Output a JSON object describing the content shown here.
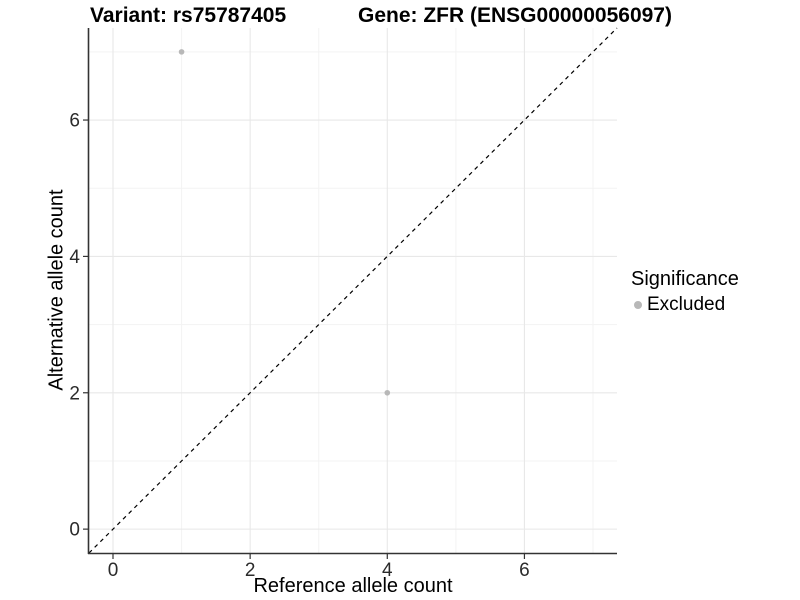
{
  "chart_data": {
    "type": "scatter",
    "title_left": "Variant: rs75787405",
    "title_right": "Gene: ZFR (ENSG00000056097)",
    "xlabel": "Reference allele count",
    "ylabel": "Alternative allele count",
    "xlim": [
      -0.35,
      7.35
    ],
    "ylim": [
      -0.35,
      7.35
    ],
    "x_ticks": [
      0,
      2,
      4,
      6
    ],
    "y_ticks": [
      0,
      2,
      4,
      6
    ],
    "x_minor_ticks": [
      1,
      3,
      5,
      7
    ],
    "y_minor_ticks": [
      1,
      3,
      5,
      7
    ],
    "grid": "on",
    "identity_line": {
      "style": "dashed",
      "from": [
        -0.35,
        -0.35
      ],
      "to": [
        7.35,
        7.35
      ],
      "color": "#000000"
    },
    "series": [
      {
        "name": "Excluded",
        "color": "#b8b8b8",
        "points": [
          [
            1,
            7
          ],
          [
            4,
            2
          ]
        ]
      }
    ],
    "legend": {
      "title": "Significance",
      "position": "right",
      "entries": [
        {
          "label": "Excluded",
          "color": "#b8b8b8"
        }
      ]
    }
  },
  "colors": {
    "background": "#ffffff",
    "grid_major": "#e8e8e8",
    "grid_minor": "#f3f3f3",
    "axis_line": "#333333",
    "tick_mark": "#333333",
    "tick_label": "#2b2b2b",
    "title_text": "#000000"
  }
}
